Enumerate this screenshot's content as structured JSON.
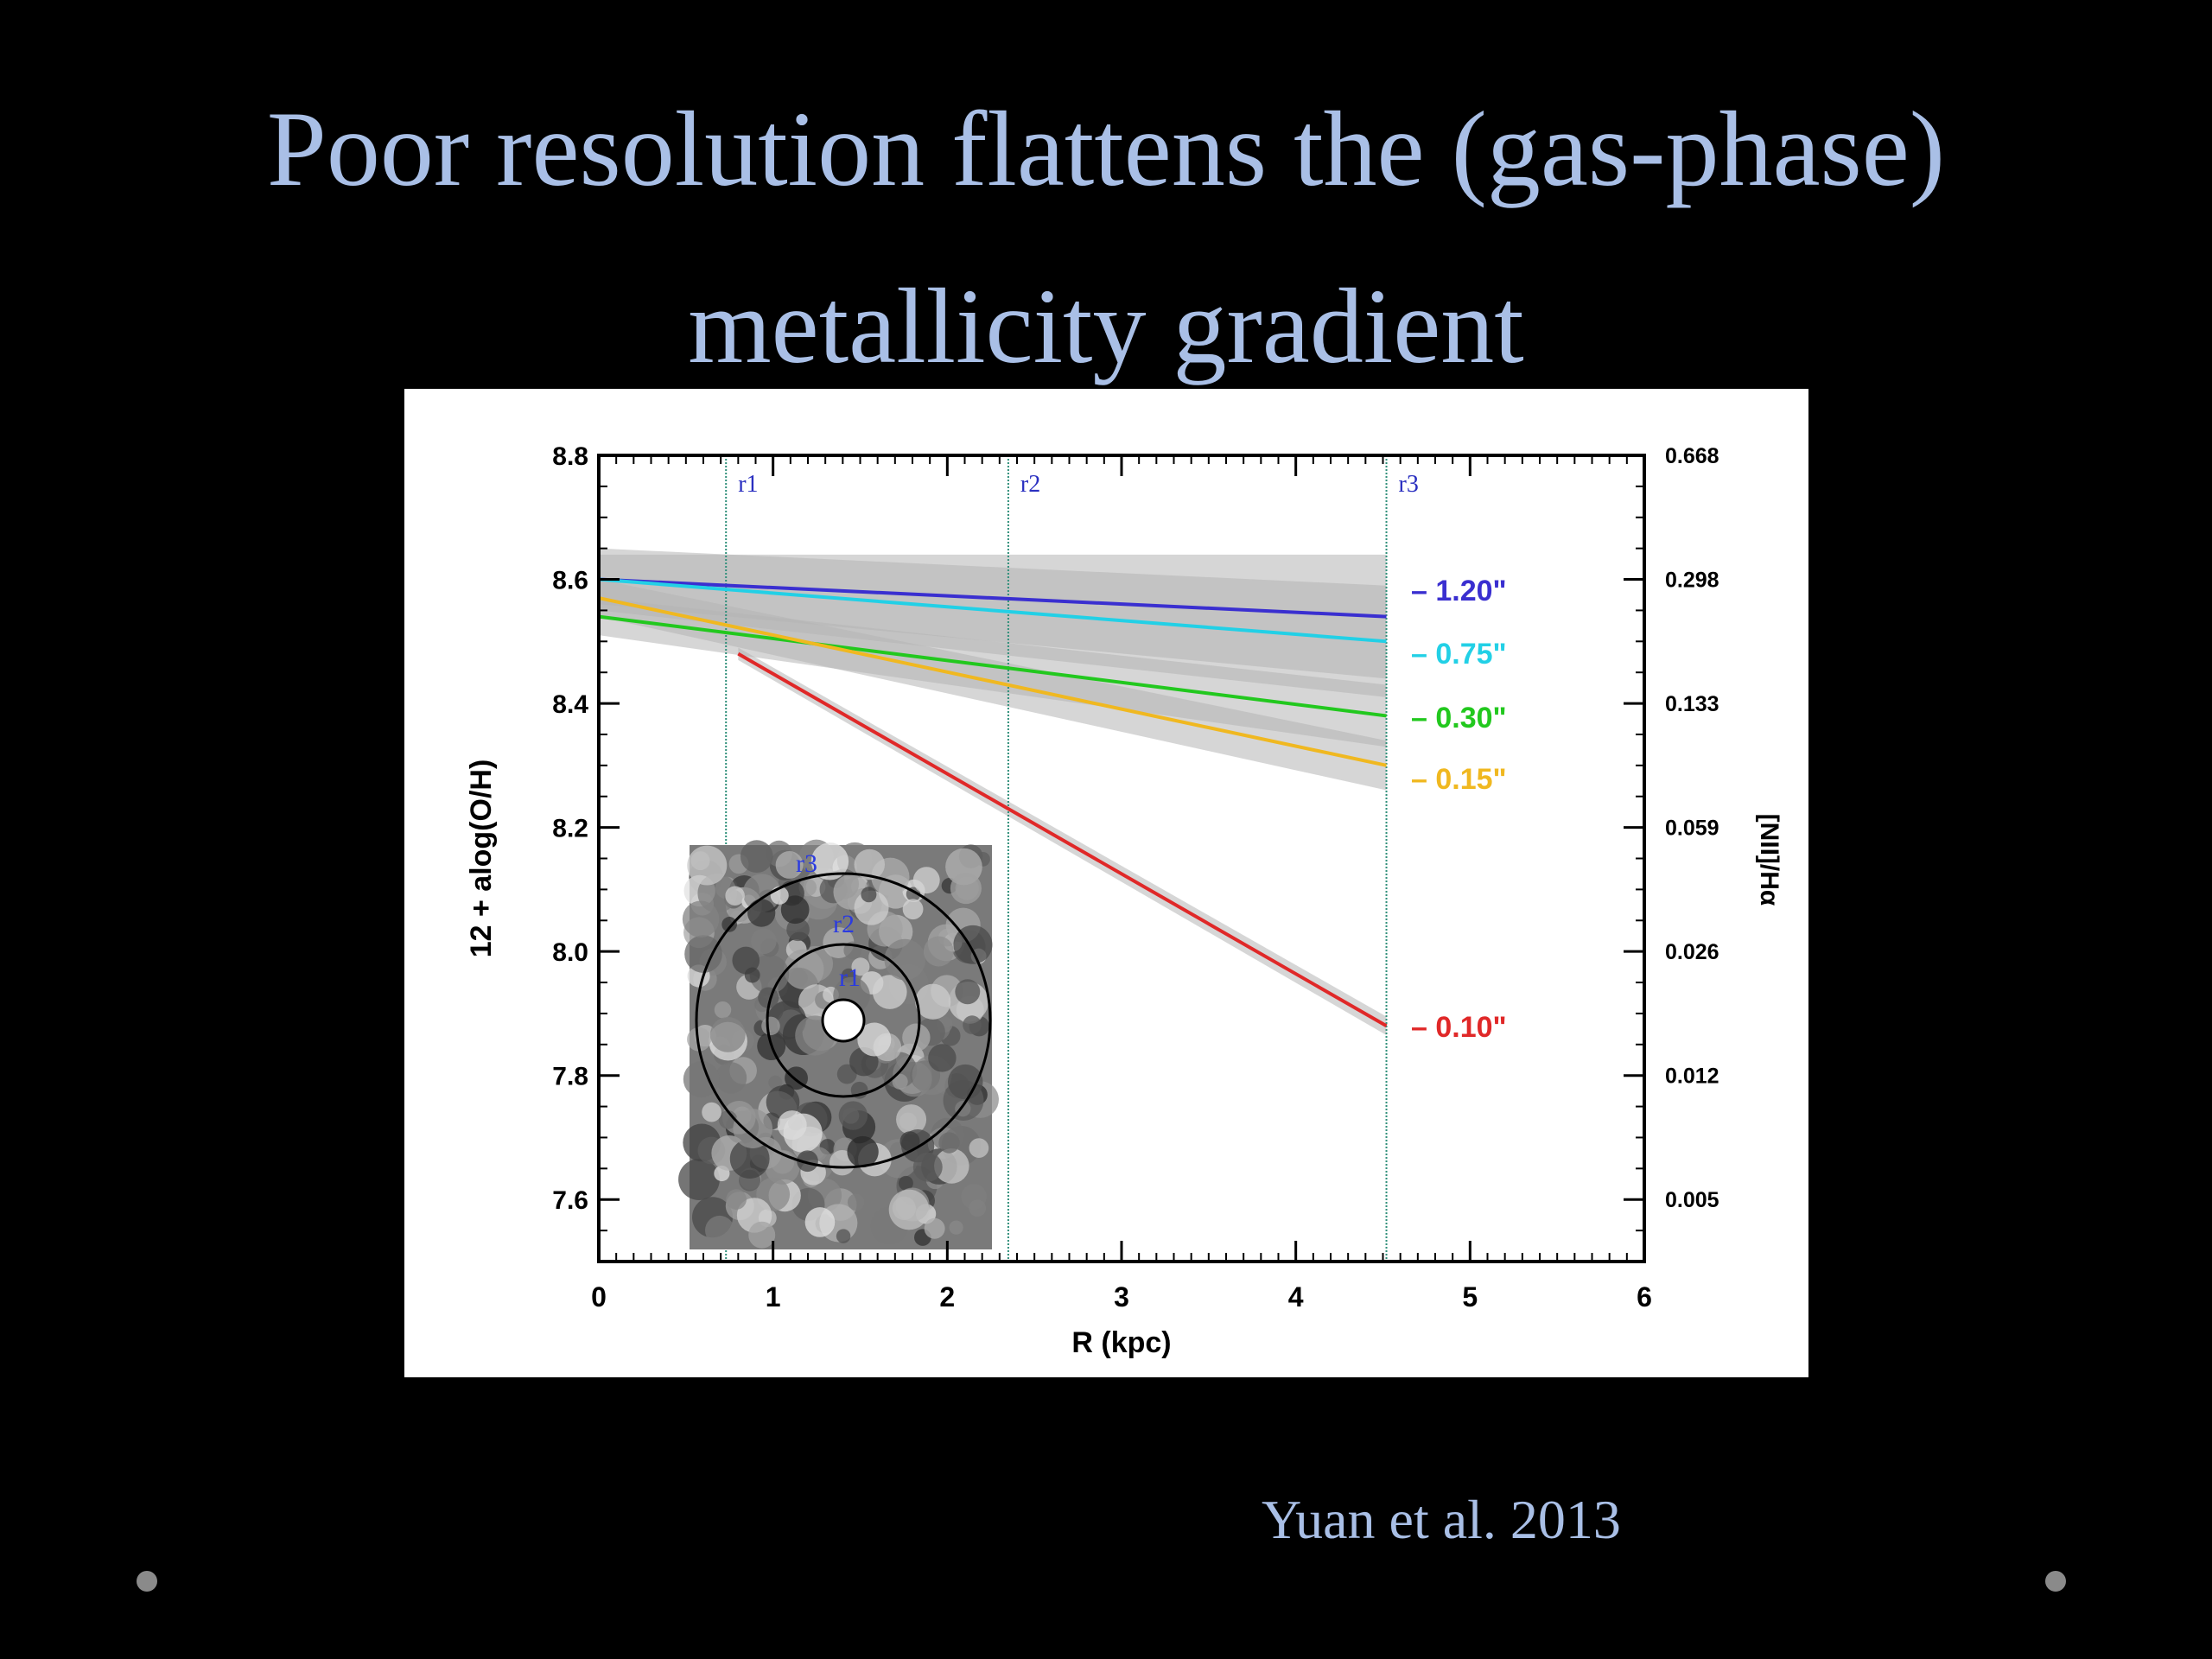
{
  "slide": {
    "title_line1": "Poor resolution flattens the (gas-phase)",
    "title_line2": "metallicity gradient",
    "citation": "Yuan et al. 2013"
  },
  "chart_data": {
    "type": "line",
    "xlabel": "R (kpc)",
    "ylabel": "12 + alog(O/H)",
    "y2label": "[NII]/Hα",
    "xlim": [
      0,
      6
    ],
    "ylim": [
      7.5,
      8.8
    ],
    "xticks": [
      "0",
      "1",
      "2",
      "3",
      "4",
      "5",
      "6"
    ],
    "yticks": [
      "7.6",
      "7.8",
      "8.0",
      "8.2",
      "8.4",
      "8.6",
      "8.8"
    ],
    "y2ticks": [
      "0.005",
      "0.012",
      "0.026",
      "0.059",
      "0.133",
      "0.298",
      "0.668"
    ],
    "radii_markers": [
      {
        "label": "r1",
        "x": 0.73
      },
      {
        "label": "r2",
        "x": 2.35
      },
      {
        "label": "r3",
        "x": 4.52
      }
    ],
    "series": [
      {
        "name": "1.20\"",
        "color": "#3a2fd0",
        "x": [
          0,
          4.52
        ],
        "y": [
          8.6,
          8.54
        ],
        "band": [
          0.04,
          0.1
        ]
      },
      {
        "name": "0.75\"",
        "color": "#22d0e6",
        "x": [
          0,
          4.52
        ],
        "y": [
          8.6,
          8.5
        ],
        "band": [
          0.05,
          0.09
        ]
      },
      {
        "name": "0.30\"",
        "color": "#22c81e",
        "x": [
          0,
          4.52
        ],
        "y": [
          8.54,
          8.38
        ],
        "band": [
          0.03,
          0.05
        ]
      },
      {
        "name": "0.15\"",
        "color": "#f0b820",
        "x": [
          0,
          4.52
        ],
        "y": [
          8.57,
          8.3
        ],
        "band": [
          0.03,
          0.04
        ]
      },
      {
        "name": "0.10\"",
        "color": "#e02828",
        "x": [
          0.8,
          4.52
        ],
        "y": [
          8.48,
          7.88
        ],
        "band": [
          0.01,
          0.015
        ]
      }
    ],
    "inset_labels": [
      "r3",
      "r2",
      "r1"
    ],
    "grid": false
  }
}
